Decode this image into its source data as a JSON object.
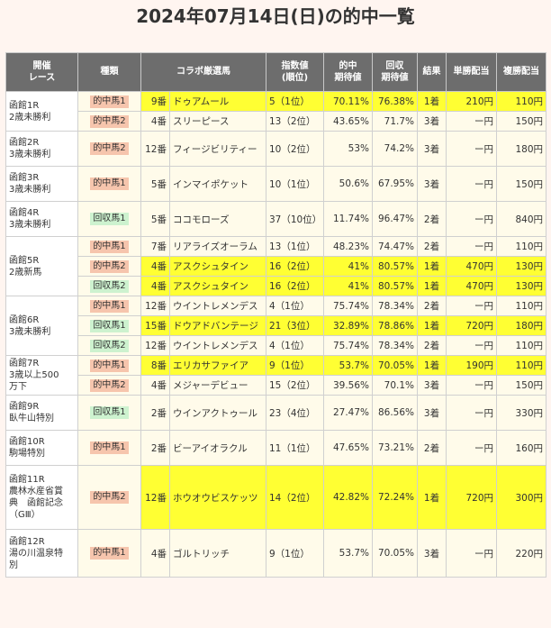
{
  "title": "2024年07月14日(日)の的中一覧",
  "headers": {
    "race_1": "開催",
    "race_2": "レース",
    "type": "種類",
    "horse": "コラボ厳選馬",
    "index_1": "指数値",
    "index_2": "(順位)",
    "hit_1": "的中",
    "hit_2": "期待値",
    "rec_1": "回収",
    "rec_2": "期待値",
    "result": "結果",
    "win": "単勝配当",
    "place": "複勝配当"
  },
  "races": [
    {
      "name_lines": [
        "函館1R",
        "2歳未勝利"
      ],
      "rows": [
        {
          "badge": "的中馬1",
          "kind": "hit",
          "num": "9番",
          "horse": "ドゥアムール",
          "index": "5（1位）",
          "hit": "70.11%",
          "rec": "76.38%",
          "result": "1着",
          "win": "210円",
          "place": "110円",
          "hl": true
        },
        {
          "badge": "的中馬2",
          "kind": "hit",
          "num": "4番",
          "horse": "スリーピース",
          "index": "13（2位）",
          "hit": "43.65%",
          "rec": "71.7%",
          "result": "3着",
          "win": "ー円",
          "place": "150円",
          "hl": false
        }
      ]
    },
    {
      "name_lines": [
        "函館2R",
        "3歳未勝利"
      ],
      "rows": [
        {
          "badge": "的中馬2",
          "kind": "hit",
          "num": "12番",
          "horse": "フィージビリティー",
          "index": "10（2位）",
          "hit": "53%",
          "rec": "74.2%",
          "result": "3着",
          "win": "ー円",
          "place": "180円",
          "hl": false
        }
      ]
    },
    {
      "name_lines": [
        "函館3R",
        "3歳未勝利"
      ],
      "rows": [
        {
          "badge": "的中馬1",
          "kind": "hit",
          "num": "5番",
          "horse": "インマイポケット",
          "index": "10（1位）",
          "hit": "50.6%",
          "rec": "67.95%",
          "result": "3着",
          "win": "ー円",
          "place": "150円",
          "hl": false
        }
      ]
    },
    {
      "name_lines": [
        "函館4R",
        "3歳未勝利"
      ],
      "rows": [
        {
          "badge": "回収馬1",
          "kind": "rec",
          "num": "5番",
          "horse": "ココモローズ",
          "index": "37（10位）",
          "hit": "11.74%",
          "rec": "96.47%",
          "result": "2着",
          "win": "ー円",
          "place": "840円",
          "hl": false
        }
      ]
    },
    {
      "name_lines": [
        "函館5R",
        "2歳新馬"
      ],
      "rows": [
        {
          "badge": "的中馬1",
          "kind": "hit",
          "num": "7番",
          "horse": "リアライズオーラム",
          "index": "13（1位）",
          "hit": "48.23%",
          "rec": "74.47%",
          "result": "2着",
          "win": "ー円",
          "place": "110円",
          "hl": false
        },
        {
          "badge": "的中馬2",
          "kind": "hit",
          "num": "4番",
          "horse": "アスクシュタイン",
          "index": "16（2位）",
          "hit": "41%",
          "rec": "80.57%",
          "result": "1着",
          "win": "470円",
          "place": "130円",
          "hl": true
        },
        {
          "badge": "回収馬2",
          "kind": "rec",
          "num": "4番",
          "horse": "アスクシュタイン",
          "index": "16（2位）",
          "hit": "41%",
          "rec": "80.57%",
          "result": "1着",
          "win": "470円",
          "place": "130円",
          "hl": true
        }
      ]
    },
    {
      "name_lines": [
        "函館6R",
        "3歳未勝利"
      ],
      "rows": [
        {
          "badge": "的中馬1",
          "kind": "hit",
          "num": "12番",
          "horse": "ウイントレメンデス",
          "index": "4（1位）",
          "hit": "75.74%",
          "rec": "78.34%",
          "result": "2着",
          "win": "ー円",
          "place": "110円",
          "hl": false
        },
        {
          "badge": "回収馬1",
          "kind": "rec",
          "num": "15番",
          "horse": "ドウアドバンテージ",
          "index": "21（3位）",
          "hit": "32.89%",
          "rec": "78.86%",
          "result": "1着",
          "win": "720円",
          "place": "180円",
          "hl": true
        },
        {
          "badge": "回収馬2",
          "kind": "rec",
          "num": "12番",
          "horse": "ウイントレメンデス",
          "index": "4（1位）",
          "hit": "75.74%",
          "rec": "78.34%",
          "result": "2着",
          "win": "ー円",
          "place": "110円",
          "hl": false
        }
      ]
    },
    {
      "name_lines": [
        "函館7R",
        "3歳以上500",
        "万下"
      ],
      "rows": [
        {
          "badge": "的中馬1",
          "kind": "hit",
          "num": "8番",
          "horse": "エリカサファイア",
          "index": "9（1位）",
          "hit": "53.7%",
          "rec": "70.05%",
          "result": "1着",
          "win": "190円",
          "place": "110円",
          "hl": true
        },
        {
          "badge": "的中馬2",
          "kind": "hit",
          "num": "4番",
          "horse": "メジャーデビュー",
          "index": "15（2位）",
          "hit": "39.56%",
          "rec": "70.1%",
          "result": "3着",
          "win": "ー円",
          "place": "150円",
          "hl": false
        }
      ]
    },
    {
      "name_lines": [
        "函館9R",
        "臥牛山特別"
      ],
      "rows": [
        {
          "badge": "回収馬1",
          "kind": "rec",
          "num": "2番",
          "horse": "ウインアクトゥール",
          "index": "23（4位）",
          "hit": "27.47%",
          "rec": "86.56%",
          "result": "3着",
          "win": "ー円",
          "place": "330円",
          "hl": false
        }
      ]
    },
    {
      "name_lines": [
        "函館10R",
        "駒場特別"
      ],
      "rows": [
        {
          "badge": "的中馬1",
          "kind": "hit",
          "num": "2番",
          "horse": "ビーアイオラクル",
          "index": "11（1位）",
          "hit": "47.65%",
          "rec": "73.21%",
          "result": "2着",
          "win": "ー円",
          "place": "160円",
          "hl": false
        }
      ]
    },
    {
      "name_lines": [
        "函館11R",
        "農林水産省賞",
        "典　函館記念",
        "（GⅢ）"
      ],
      "rows": [
        {
          "badge": "的中馬2",
          "kind": "hit",
          "num": "12番",
          "horse": "ホウオウビスケッツ",
          "index": "14（2位）",
          "hit": "42.82%",
          "rec": "72.24%",
          "result": "1着",
          "win": "720円",
          "place": "300円",
          "hl": true
        }
      ]
    },
    {
      "name_lines": [
        "函館12R",
        "湯の川温泉特",
        "別"
      ],
      "rows": [
        {
          "badge": "的中馬1",
          "kind": "hit",
          "num": "4番",
          "horse": "ゴルトリッチ",
          "index": "9（1位）",
          "hit": "53.7%",
          "rec": "70.05%",
          "result": "3着",
          "win": "ー円",
          "place": "220円",
          "hl": false
        }
      ]
    }
  ]
}
